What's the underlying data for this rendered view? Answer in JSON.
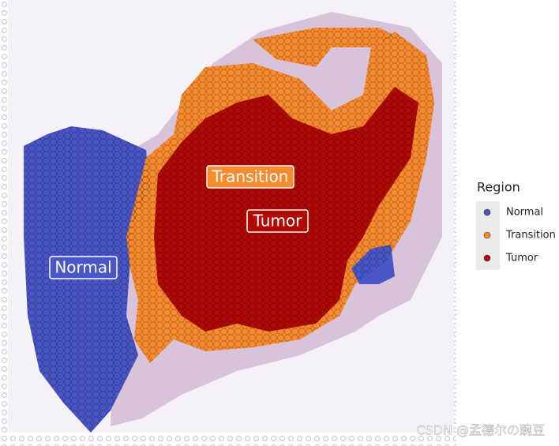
{
  "annotations": [
    {
      "text": "Normal"
    },
    {
      "text": "Transition"
    },
    {
      "text": "Tumor"
    }
  ],
  "legend": {
    "title": "Region",
    "items": [
      {
        "label": "Normal",
        "color": "#4a55c6"
      },
      {
        "label": "Transition",
        "color": "#f98b2f"
      },
      {
        "label": "Tumor",
        "color": "#b10a06"
      }
    ]
  },
  "watermark": "CSDN @孟德尔の豌豆"
}
